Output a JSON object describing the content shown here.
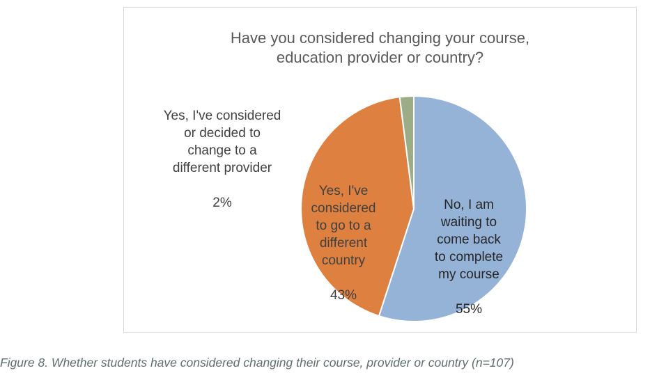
{
  "chart_data": {
    "type": "pie",
    "title": "Have you considered changing your course,\neducation provider or country?",
    "slices": [
      {
        "label": "No, I am\nwaiting to\ncome back\nto complete\nmy course",
        "value": 55,
        "value_label": "55%",
        "color": "#95b3d7"
      },
      {
        "label": "Yes, I've\nconsidered\nto go to a\ndifferent\ncountry",
        "value": 43,
        "value_label": "43%",
        "color": "#dd8040"
      },
      {
        "label": "Yes, I've considered\nor decided to\nchange to a\ndifferent provider",
        "value": 2,
        "value_label": "2%",
        "color": "#9cac86"
      }
    ]
  },
  "caption": "Figure 8. Whether students have considered changing their course, provider or country (n=107)"
}
